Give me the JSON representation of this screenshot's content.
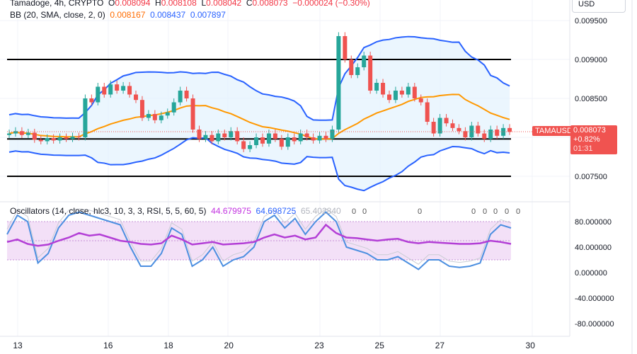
{
  "header": {
    "symbol": "Tamadoge, 4h, CRYPTO",
    "o_label": "O",
    "o": "0.008094",
    "h_label": "H",
    "h": "0.008108",
    "l_label": "L",
    "l": "0.008042",
    "c_label": "C",
    "c": "0.008073",
    "change": "−0.000024 (−0.30%)"
  },
  "bb": {
    "label": "BB (20, SMA, close, 2, 0)",
    "basis": "0.008167",
    "upper": "0.008437",
    "lower": "0.007897"
  },
  "oscillators": {
    "label": "Oscillators (14, close, hlc3, 10, 3, 3, RSI, 5, 5, 60, 5)",
    "v1": "44.679975",
    "v2": "64.698725",
    "v3": "65.402840",
    "zeros": [
      "0",
      "0",
      "0",
      "0",
      "0",
      "0",
      "0",
      "0"
    ]
  },
  "currency": "USD",
  "price_tag": {
    "symbol": "TAMAUSD",
    "price": "0.008073",
    "change": "+0.82%",
    "countdown": "01:31"
  },
  "colors": {
    "up": "#26a69a",
    "down": "#ef5350",
    "bb_basis": "#ff9800",
    "bb_band": "#2962ff",
    "bb_fill": "#e3f2fd",
    "rsi": "#b33fd6",
    "stoch": "#4c8fe0",
    "osc_band": "#f3e0f7",
    "tag": "#f05350"
  },
  "price_axis": {
    "ticks": [
      0.0095,
      0.009,
      0.0085,
      0.0075
    ],
    "labels": [
      "0.009500",
      "0.009000",
      "0.008500",
      "0.007500"
    ],
    "range": [
      0.0073,
      0.0097
    ]
  },
  "osc_axis": {
    "ticks": [
      80,
      40,
      0,
      -40,
      -80
    ],
    "labels": [
      "80.000000",
      "40.000000",
      "0.000000",
      "-40.000000",
      "-80.000000"
    ],
    "range": [
      -100,
      100
    ]
  },
  "levels": [
    0.009,
    0.00798,
    0.0075
  ],
  "x_axis": {
    "labels": [
      {
        "day": 13,
        "text": "13"
      },
      {
        "day": 16,
        "text": "16"
      },
      {
        "day": 18,
        "text": "18"
      },
      {
        "day": 20,
        "text": "20"
      },
      {
        "day": 23,
        "text": "23"
      },
      {
        "day": 25,
        "text": "25"
      },
      {
        "day": 27,
        "text": "27"
      },
      {
        "day": 30,
        "text": "30"
      }
    ]
  },
  "chart_data": {
    "type": "candlestick",
    "first_open": 0.00803,
    "closes": [
      0.00805,
      0.00808,
      0.00803,
      0.00806,
      0.00797,
      0.00795,
      0.00799,
      0.00796,
      0.008,
      0.00798,
      0.00801,
      0.008,
      0.0085,
      0.00845,
      0.00865,
      0.00855,
      0.00868,
      0.0086,
      0.00866,
      0.00855,
      0.00848,
      0.00825,
      0.0083,
      0.00822,
      0.00828,
      0.00832,
      0.00845,
      0.0086,
      0.0085,
      0.0081,
      0.00798,
      0.00803,
      0.00795,
      0.00805,
      0.008,
      0.00808,
      0.00795,
      0.00785,
      0.0079,
      0.008,
      0.00792,
      0.00805,
      0.00798,
      0.00788,
      0.008,
      0.00795,
      0.00805,
      0.008,
      0.00796,
      0.00802,
      0.00798,
      0.0081,
      0.0093,
      0.009,
      0.0088,
      0.0089,
      0.00905,
      0.0086,
      0.0087,
      0.00855,
      0.00848,
      0.0086,
      0.00855,
      0.00865,
      0.0085,
      0.00845,
      0.0082,
      0.00805,
      0.00825,
      0.00818,
      0.00812,
      0.00808,
      0.008,
      0.00815,
      0.00805,
      0.00798,
      0.0081,
      0.00802,
      0.00812,
      0.00807
    ],
    "stoch": [
      60,
      90,
      80,
      15,
      30,
      70,
      90,
      95,
      90,
      85,
      80,
      75,
      40,
      10,
      10,
      30,
      70,
      60,
      10,
      20,
      40,
      10,
      20,
      25,
      40,
      80,
      90,
      70,
      85,
      60,
      80,
      95,
      80,
      40,
      35,
      30,
      20,
      20,
      25,
      15,
      5,
      20,
      20,
      10,
      8,
      10,
      15,
      60,
      75,
      70
    ],
    "rsi": [
      48,
      52,
      45,
      42,
      44,
      50,
      55,
      62,
      58,
      60,
      55,
      50,
      48,
      45,
      44,
      46,
      58,
      52,
      44,
      46,
      48,
      44,
      45,
      46,
      48,
      55,
      60,
      55,
      58,
      52,
      55,
      75,
      62,
      55,
      54,
      52,
      50,
      52,
      53,
      48,
      46,
      48,
      47,
      46,
      45,
      45,
      46,
      50,
      48,
      45
    ]
  }
}
